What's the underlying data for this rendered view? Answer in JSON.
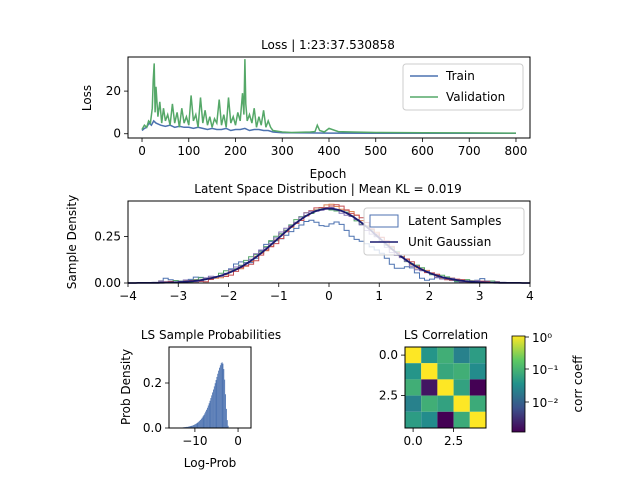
{
  "chart_data": [
    {
      "id": "loss",
      "type": "line",
      "title": "Loss | 1:23:37.530858",
      "xlabel": "Epoch",
      "ylabel": "Loss",
      "xlim": [
        -30,
        830
      ],
      "ylim": [
        -2,
        36
      ],
      "xticks": [
        0,
        100,
        200,
        300,
        400,
        500,
        600,
        700,
        800
      ],
      "yticks": [
        0,
        20
      ],
      "legend": "top-right",
      "series": [
        {
          "name": "Train",
          "color": "#4c72b0",
          "x": [
            0,
            5,
            10,
            15,
            20,
            25,
            30,
            40,
            50,
            60,
            70,
            80,
            90,
            100,
            110,
            120,
            130,
            140,
            150,
            160,
            170,
            180,
            190,
            200,
            210,
            220,
            230,
            240,
            250,
            260,
            270,
            280,
            300,
            350,
            400,
            500,
            600,
            700,
            800
          ],
          "y": [
            1.5,
            2.5,
            3,
            5,
            4,
            6,
            5,
            4,
            3.5,
            4,
            3,
            3.5,
            3,
            3,
            2.5,
            3,
            2.5,
            2,
            2.5,
            2,
            2,
            2.5,
            1.5,
            2,
            2,
            2.5,
            1.5,
            2,
            2,
            1.5,
            1.5,
            0.8,
            0.5,
            0.4,
            0.3,
            0.2,
            0.2,
            0.2,
            0.2
          ]
        },
        {
          "name": "Validation",
          "color": "#55a868",
          "x": [
            0,
            5,
            10,
            14,
            18,
            22,
            24,
            26,
            28,
            30,
            34,
            38,
            42,
            46,
            50,
            55,
            60,
            65,
            70,
            75,
            80,
            85,
            90,
            95,
            100,
            105,
            110,
            115,
            120,
            125,
            130,
            135,
            140,
            145,
            150,
            155,
            160,
            165,
            170,
            175,
            180,
            185,
            190,
            195,
            200,
            205,
            210,
            215,
            218,
            220,
            222,
            225,
            230,
            235,
            240,
            245,
            250,
            255,
            260,
            265,
            270,
            275,
            280,
            300,
            320,
            340,
            360,
            370,
            375,
            380,
            390,
            400,
            420,
            450,
            500,
            600,
            700,
            800
          ],
          "y": [
            2,
            4,
            3,
            6,
            5,
            12,
            25,
            33,
            10,
            22,
            8,
            15,
            5,
            12,
            6,
            9,
            4,
            14,
            5,
            10,
            3,
            12,
            5,
            8,
            4,
            18,
            6,
            9,
            3,
            17,
            5,
            11,
            4,
            8,
            3,
            7,
            5,
            16,
            4,
            9,
            3,
            17,
            5,
            8,
            4,
            10,
            6,
            19,
            9,
            35,
            14,
            6,
            9,
            5,
            12,
            3,
            8,
            4,
            11,
            3,
            6,
            3,
            1.5,
            0.8,
            0.6,
            0.7,
            0.8,
            1,
            4,
            1.5,
            0.8,
            2.5,
            1,
            0.8,
            0.6,
            0.5,
            0.4,
            0.3
          ]
        }
      ]
    },
    {
      "id": "latent",
      "type": "line",
      "title": "Latent Space Distribution | Mean KL = 0.019",
      "xlabel": "",
      "ylabel": "Sample Density",
      "xlim": [
        -4,
        4
      ],
      "ylim": [
        0,
        0.44
      ],
      "xticks": [
        -4,
        -3,
        -2,
        -1,
        0,
        1,
        2,
        3,
        4
      ],
      "yticks": [
        0.0,
        0.25
      ],
      "ytick_labels": [
        "0.00",
        "0.25"
      ],
      "legend": "top-right",
      "gaussian": {
        "name": "Unit Gaussian",
        "color": "#1a1a6e",
        "mean": 0,
        "std": 1
      },
      "histograms": [
        {
          "name": "Latent Samples",
          "color": "#4c72b0",
          "mean": -0.2,
          "std": 1.0,
          "scale": 0.82,
          "flat": true
        },
        {
          "color": "#dd8452",
          "mean": 0.02,
          "std": 0.98,
          "scale": 1.02
        },
        {
          "color": "#55a868",
          "mean": -0.03,
          "std": 1.03,
          "scale": 1.03
        },
        {
          "color": "#c44e52",
          "mean": 0.05,
          "std": 0.97,
          "scale": 1.01
        },
        {
          "color": "#8172b3",
          "mean": -0.05,
          "std": 1.0,
          "scale": 1.0
        }
      ],
      "legend_entries": [
        "Latent Samples",
        "Unit Gaussian"
      ]
    },
    {
      "id": "ls-prob",
      "type": "bar",
      "title": "LS Sample Probabilities",
      "xlabel": "Log-Prob",
      "ylabel": "Prob Density",
      "xlim": [
        -16,
        3
      ],
      "ylim": [
        0,
        0.36
      ],
      "xticks": [
        -10,
        0
      ],
      "yticks": [
        0.0,
        0.2
      ],
      "ytick_labels": [
        "0.0",
        "0.2"
      ],
      "color": "#4c72b0",
      "bins": {
        "start": -14.0,
        "width": 0.2,
        "values": [
          0.001,
          0.001,
          0.001,
          0.002,
          0.002,
          0.002,
          0.003,
          0.003,
          0.004,
          0.004,
          0.005,
          0.005,
          0.006,
          0.007,
          0.008,
          0.009,
          0.01,
          0.011,
          0.013,
          0.015,
          0.017,
          0.019,
          0.022,
          0.025,
          0.028,
          0.032,
          0.036,
          0.041,
          0.046,
          0.052,
          0.058,
          0.065,
          0.073,
          0.081,
          0.09,
          0.1,
          0.11,
          0.121,
          0.133,
          0.145,
          0.158,
          0.171,
          0.185,
          0.199,
          0.213,
          0.227,
          0.241,
          0.255,
          0.268,
          0.279,
          0.288,
          0.292,
          0.286,
          0.262,
          0.215,
          0.15,
          0.085,
          0.035,
          0.01,
          0.002
        ]
      }
    },
    {
      "id": "ls-corr",
      "type": "heatmap",
      "title": "LS Correlation",
      "xticks": [
        0.0,
        2.5
      ],
      "xtick_labels": [
        "0.0",
        "2.5"
      ],
      "yticks": [
        0.0,
        2.5
      ],
      "ytick_labels": [
        "0.0",
        "2.5"
      ],
      "colorbar_label": "corr coeff",
      "colorbar_ticks": [
        "10⁰",
        "10⁻¹",
        "10⁻²"
      ],
      "matrix": [
        [
          1.0,
          0.05,
          0.1,
          0.03,
          0.06
        ],
        [
          0.05,
          1.0,
          0.08,
          0.1,
          0.04
        ],
        [
          0.1,
          0.003,
          1.0,
          0.07,
          0.002
        ],
        [
          0.03,
          0.1,
          0.07,
          1.0,
          0.09
        ],
        [
          0.06,
          0.04,
          0.002,
          0.09,
          1.0
        ]
      ]
    }
  ]
}
